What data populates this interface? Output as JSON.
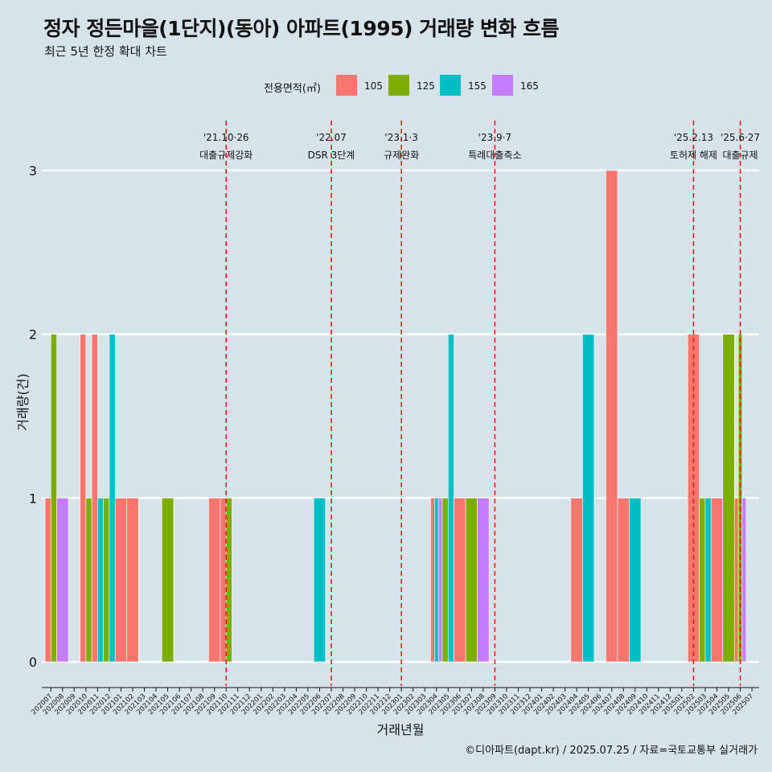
{
  "title": "정자 정든마을(1단지)(동아) 아파트(1995) 거래량 변화 흐름",
  "subtitle": "최근 5년 한정 확대 차트",
  "caption": "©디아파트(dapt.kr) / 2025.07.25 / 자료=국토교통부 실거래가",
  "legend": {
    "title": "전용면적(㎡)",
    "items": [
      {
        "label": "105",
        "color": "#f8766d"
      },
      {
        "label": "125",
        "color": "#7cae00"
      },
      {
        "label": "155",
        "color": "#00bfc4"
      },
      {
        "label": "165",
        "color": "#c77cff"
      }
    ]
  },
  "chart_data": {
    "type": "bar",
    "xlabel": "거래년월",
    "ylabel": "거래량(건)",
    "ylim": [
      0,
      3
    ],
    "yticks": [
      0,
      1,
      2,
      3
    ],
    "grid": true,
    "legend_position": "top",
    "categories": [
      "202007",
      "202008",
      "202009",
      "202010",
      "202011",
      "202012",
      "202101",
      "202102",
      "202103",
      "202104",
      "202105",
      "202106",
      "202107",
      "202108",
      "202109",
      "202110",
      "202111",
      "202112",
      "202201",
      "202202",
      "202203",
      "202204",
      "202205",
      "202206",
      "202207",
      "202208",
      "202209",
      "202210",
      "202211",
      "202212",
      "202301",
      "202302",
      "202303",
      "202304",
      "202305",
      "202306",
      "202307",
      "202308",
      "202309",
      "202310",
      "202311",
      "202312",
      "202401",
      "202402",
      "202403",
      "202404",
      "202405",
      "202406",
      "202407",
      "202408",
      "202409",
      "202410",
      "202411",
      "202412",
      "202501",
      "202502",
      "202503",
      "202504",
      "202505",
      "202506",
      "202507"
    ],
    "series": [
      {
        "name": "105",
        "values": [
          1,
          0,
          0,
          2,
          2,
          0,
          1,
          1,
          0,
          0,
          0,
          0,
          0,
          0,
          1,
          1,
          0,
          0,
          0,
          0,
          0,
          0,
          0,
          0,
          0,
          0,
          0,
          0,
          0,
          0,
          0,
          0,
          0,
          1,
          0,
          1,
          0,
          0,
          0,
          0,
          0,
          0,
          0,
          0,
          0,
          1,
          0,
          0,
          3,
          1,
          0,
          0,
          0,
          0,
          0,
          2,
          0,
          1,
          0,
          1,
          0
        ]
      },
      {
        "name": "125",
        "values": [
          2,
          0,
          0,
          1,
          0,
          1,
          0,
          0,
          0,
          0,
          1,
          0,
          0,
          0,
          0,
          1,
          0,
          0,
          0,
          0,
          0,
          0,
          0,
          0,
          0,
          0,
          0,
          0,
          0,
          0,
          0,
          0,
          0,
          0,
          1,
          0,
          1,
          0,
          0,
          0,
          0,
          0,
          0,
          0,
          0,
          0,
          0,
          0,
          0,
          0,
          0,
          0,
          0,
          0,
          0,
          0,
          1,
          0,
          2,
          2,
          0
        ]
      },
      {
        "name": "155",
        "values": [
          0,
          0,
          0,
          0,
          1,
          2,
          0,
          0,
          0,
          0,
          0,
          0,
          0,
          0,
          0,
          0,
          0,
          0,
          0,
          0,
          0,
          0,
          0,
          1,
          0,
          0,
          0,
          0,
          0,
          0,
          0,
          0,
          0,
          1,
          2,
          0,
          0,
          0,
          0,
          0,
          0,
          0,
          0,
          0,
          0,
          0,
          2,
          0,
          0,
          0,
          1,
          0,
          0,
          0,
          0,
          0,
          1,
          0,
          0,
          0,
          0
        ]
      },
      {
        "name": "165",
        "values": [
          0,
          1,
          0,
          0,
          0,
          0,
          0,
          0,
          0,
          0,
          0,
          0,
          0,
          0,
          0,
          0,
          0,
          0,
          0,
          0,
          0,
          0,
          0,
          0,
          0,
          0,
          0,
          0,
          0,
          0,
          0,
          0,
          0,
          1,
          0,
          0,
          0,
          1,
          0,
          0,
          0,
          0,
          0,
          0,
          0,
          0,
          0,
          0,
          0,
          0,
          0,
          0,
          0,
          0,
          0,
          0,
          0,
          0,
          0,
          1,
          0
        ]
      }
    ],
    "annotations": [
      {
        "at": "202110",
        "date": "'21.10·26",
        "text": "대출규제강화"
      },
      {
        "at": "202207",
        "date": "'22.07",
        "text": "DSR 3단계"
      },
      {
        "at": "202301",
        "date": "'23.1·3",
        "text": "규제완화"
      },
      {
        "at": "202309",
        "date": "'23.9·7",
        "text": "특례대출축소"
      },
      {
        "at": "202502",
        "date": "'25.2.13",
        "text": "토허제 해제"
      },
      {
        "at": "202506",
        "date": "'25.6·27",
        "text": "대출규제"
      }
    ]
  }
}
